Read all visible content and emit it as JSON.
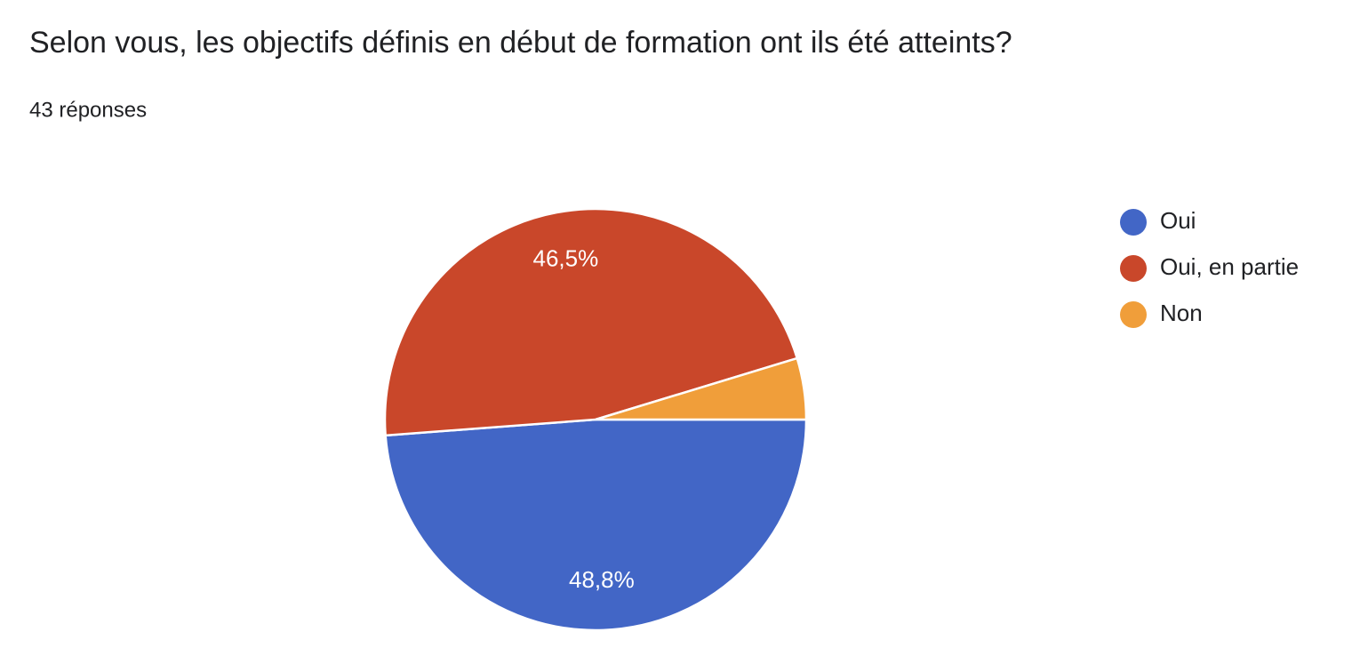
{
  "chart_data": {
    "type": "pie",
    "title": "Selon vous, les objectifs définis en début de formation ont ils été atteints?",
    "subtitle": "43 réponses",
    "categories": [
      "Oui",
      "Oui, en partie",
      "Non"
    ],
    "values": [
      48.8,
      46.5,
      4.7
    ],
    "value_labels": [
      "48,8%",
      "46,5%",
      null
    ],
    "colors": [
      "#4266c6",
      "#c9472a",
      "#f09e3a"
    ],
    "legend": "right"
  }
}
